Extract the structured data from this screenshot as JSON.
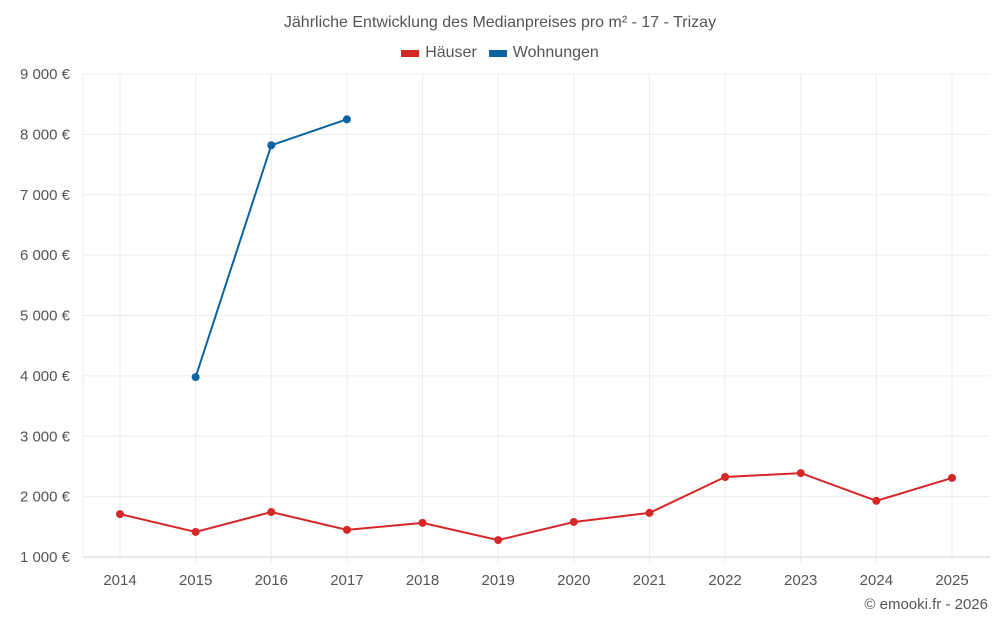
{
  "chart_data": {
    "type": "line",
    "title": "Jährliche Entwicklung des Medianpreises pro m² - 17 - Trizay",
    "xlabel": "",
    "ylabel": "",
    "categories": [
      "2014",
      "2015",
      "2016",
      "2017",
      "2018",
      "2019",
      "2020",
      "2021",
      "2022",
      "2023",
      "2024",
      "2025"
    ],
    "ylim": [
      1000,
      9000
    ],
    "yticks": [
      1000,
      2000,
      3000,
      4000,
      5000,
      6000,
      7000,
      8000,
      9000
    ],
    "ytick_labels": [
      "1 000 €",
      "2 000 €",
      "3 000 €",
      "4 000 €",
      "5 000 €",
      "6 000 €",
      "7 000 €",
      "8 000 €",
      "9 000 €"
    ],
    "grid": true,
    "legend_position": "top-center",
    "series": [
      {
        "name": "Häuser",
        "color": "#d62728",
        "values": [
          1710,
          1415,
          1745,
          1450,
          1565,
          1280,
          1580,
          1730,
          2325,
          2390,
          1930,
          2310
        ]
      },
      {
        "name": "Wohnungen",
        "color": "#0b64a0",
        "values": [
          null,
          3980,
          7820,
          8250,
          null,
          null,
          null,
          null,
          null,
          null,
          null,
          null
        ]
      }
    ]
  },
  "credit": "© emooki.fr - 2026"
}
